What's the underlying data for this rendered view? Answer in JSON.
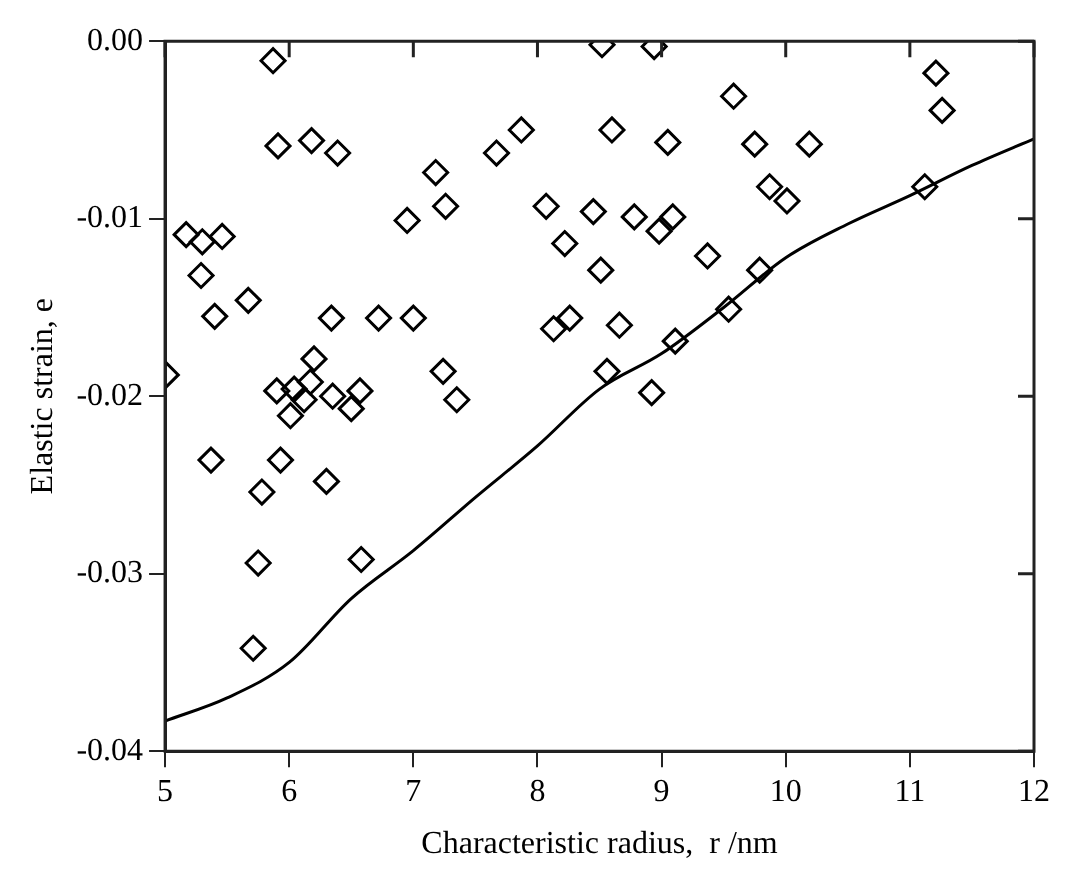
{
  "chart_data": {
    "type": "scatter",
    "xlabel": "Characteristic radius,  r /nm",
    "ylabel": "Elastic strain, e",
    "xlim": [
      5,
      12
    ],
    "ylim": [
      -0.04,
      0
    ],
    "xticks": [
      5,
      6,
      7,
      8,
      9,
      10,
      11,
      12
    ],
    "yticks": [
      {
        "value": -0.04,
        "label": "-0.04"
      },
      {
        "value": -0.03,
        "label": "-0.03"
      },
      {
        "value": -0.02,
        "label": "-0.02"
      },
      {
        "value": -0.01,
        "label": "-0.01"
      },
      {
        "value": 0,
        "label": "0.00"
      }
    ],
    "grid": false,
    "legend": false,
    "series": [
      {
        "type": "scatter",
        "marker": "diamond",
        "color": "#000000",
        "x": [
          5.87,
          5.91,
          6.18,
          6.39,
          7.18,
          7.26,
          6.95,
          7.67,
          7.87,
          8.07,
          8.22,
          5.17,
          5.3,
          5.46,
          5.29,
          5.67,
          5.4,
          6.34,
          6.72,
          7.0,
          8.13,
          8.26,
          5.01,
          6.2,
          7.24,
          7.35,
          5.9,
          6.04,
          6.17,
          6.12,
          6.35,
          6.57,
          6.5,
          6.01,
          5.37,
          5.93,
          5.78,
          6.3,
          5.75,
          6.58,
          5.71,
          8.52,
          8.94,
          9.58,
          11.21,
          11.26,
          8.6,
          9.05,
          9.75,
          10.19,
          9.87,
          10.01,
          11.12,
          8.45,
          8.78,
          9.09,
          8.98,
          9.37,
          8.51,
          9.79,
          8.66,
          9.54,
          9.11,
          8.56,
          8.92
        ],
        "values": [
          -0.0011,
          -0.0059,
          -0.0056,
          -0.0063,
          -0.0074,
          -0.0093,
          -0.0101,
          -0.0063,
          -0.005,
          -0.0093,
          -0.0114,
          -0.0109,
          -0.0113,
          -0.011,
          -0.0132,
          -0.0146,
          -0.0155,
          -0.0156,
          -0.0156,
          -0.0156,
          -0.0162,
          -0.0156,
          -0.0188,
          -0.0179,
          -0.0186,
          -0.0202,
          -0.0197,
          -0.0196,
          -0.0192,
          -0.0202,
          -0.02,
          -0.0197,
          -0.0207,
          -0.0211,
          -0.0236,
          -0.0236,
          -0.0254,
          -0.0248,
          -0.0294,
          -0.0292,
          -0.0342,
          -0.0002,
          -0.0003,
          -0.0031,
          -0.0018,
          -0.0039,
          -0.005,
          -0.0057,
          -0.0058,
          -0.0058,
          -0.0082,
          -0.009,
          -0.0082,
          -0.0096,
          -0.0099,
          -0.0099,
          -0.0107,
          -0.0121,
          -0.0129,
          -0.0129,
          -0.016,
          -0.0151,
          -0.0169,
          -0.0186,
          -0.0198
        ]
      },
      {
        "type": "line",
        "marker": "none",
        "line_style": "solid",
        "color": "#000000",
        "x": [
          5,
          5.5,
          6,
          6.5,
          7,
          7.5,
          8,
          8.5,
          9,
          9.5,
          10,
          10.5,
          11,
          11.5,
          12
        ],
        "values": [
          -0.0383,
          -0.037,
          -0.035,
          -0.0314,
          -0.0287,
          -0.0257,
          -0.0228,
          -0.0196,
          -0.0176,
          -0.015,
          -0.0122,
          -0.0103,
          -0.0087,
          -0.007,
          -0.0055
        ]
      }
    ]
  }
}
